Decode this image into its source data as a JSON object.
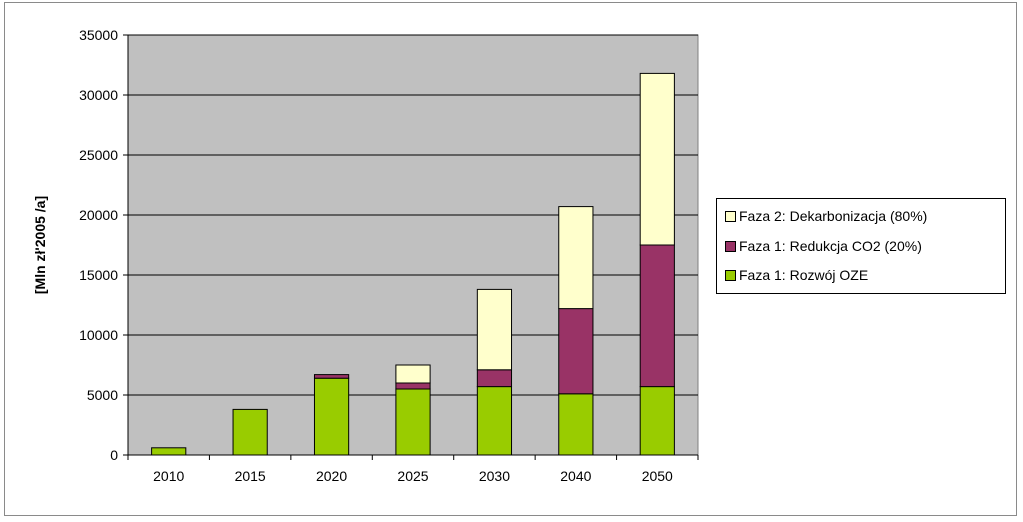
{
  "chart_data": {
    "type": "bar",
    "stacked": true,
    "categories": [
      "2010",
      "2015",
      "2020",
      "2025",
      "2030",
      "2040",
      "2050"
    ],
    "series": [
      {
        "name": "Faza 1: Rozwój OZE",
        "color": "#99cc00",
        "values": [
          600,
          3800,
          6400,
          5500,
          5700,
          5100,
          5700
        ]
      },
      {
        "name": "Faza 1: Redukcja CO2 (20%)",
        "color": "#993366",
        "values": [
          0,
          0,
          300,
          500,
          1400,
          7100,
          11800
        ]
      },
      {
        "name": "Faza 2: Dekarbonizacja (80%)",
        "color": "#ffffcc",
        "values": [
          0,
          0,
          0,
          1500,
          6700,
          8500,
          14300
        ]
      }
    ],
    "ylabel": "[Mln zł'2005 /a]",
    "xlabel": "",
    "ylim": [
      0,
      35000
    ],
    "yticks": [
      0,
      5000,
      10000,
      15000,
      20000,
      25000,
      30000,
      35000
    ],
    "grid": true,
    "legend_position": "right",
    "plot_background": "#c0c0c0"
  }
}
